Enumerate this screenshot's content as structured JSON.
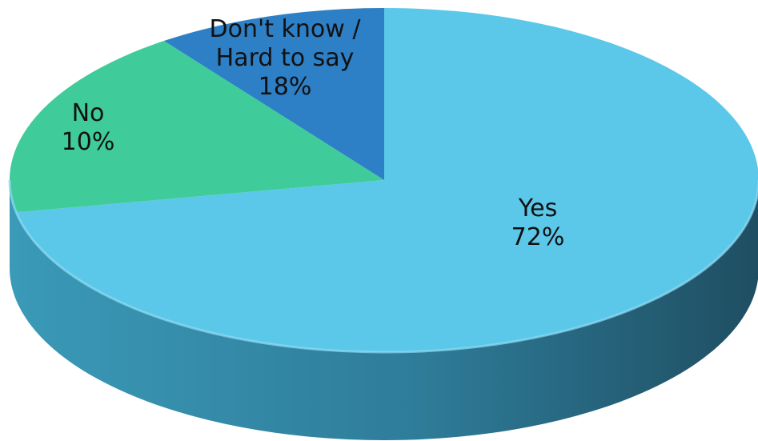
{
  "chart_data": {
    "type": "pie",
    "style": "3d",
    "slices": [
      {
        "label": "Yes",
        "value": 72,
        "value_label": "72%",
        "color": "#5bc8ea"
      },
      {
        "label": "Don't know / Hard to say",
        "label_lines": [
          "Don't know /",
          "Hard to say"
        ],
        "value": 18,
        "value_label": "18%",
        "color": "#3fcc9a"
      },
      {
        "label": "No",
        "value": 10,
        "value_label": "10%",
        "color": "#2d7fc6"
      }
    ],
    "title": "",
    "legend": "none"
  }
}
